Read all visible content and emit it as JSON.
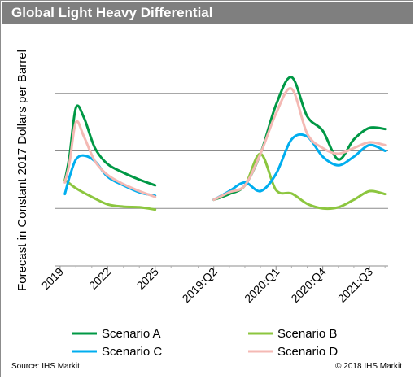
{
  "title": "Global Light Heavy Differential",
  "source": "Source: IHS Markit",
  "copyright": "© 2018 IHS Markit",
  "chart_data": {
    "type": "line",
    "title": "Global Light Heavy Differential",
    "ylabel": "Forecast in Constant 2017 Dollars per Barrel",
    "xlabel": "",
    "grid": true,
    "yticks_labeled": false,
    "ylim": [
      0,
      4
    ],
    "legend_position": "bottom",
    "panels": [
      {
        "name": "annual",
        "xlim": [
          2018.7,
          2026.4
        ],
        "x_ticks": [
          2019,
          2022,
          2025
        ],
        "x_tick_labels": [
          "2019",
          "2022",
          "2025"
        ],
        "series": [
          {
            "name": "Scenario A",
            "color": "#009845",
            "x": [
              2019.3,
              2019.6,
              2020.0,
              2020.5,
              2021.2,
              2022.0,
              2023.0,
              2024.0,
              2025.0
            ],
            "y": [
              1.48,
              1.92,
              2.75,
              2.58,
              2.05,
              1.77,
              1.62,
              1.5,
              1.4
            ]
          },
          {
            "name": "Scenario B",
            "color": "#8cc63f",
            "x": [
              2019.3,
              2020.0,
              2021.0,
              2022.0,
              2023.0,
              2024.0,
              2025.0
            ],
            "y": [
              1.5,
              1.35,
              1.2,
              1.07,
              1.03,
              1.02,
              0.98
            ]
          },
          {
            "name": "Scenario C",
            "color": "#00aeef",
            "x": [
              2019.3,
              2019.6,
              2020.0,
              2020.5,
              2021.2,
              2022.0,
              2023.0,
              2024.0,
              2025.0
            ],
            "y": [
              1.25,
              1.55,
              1.85,
              1.92,
              1.82,
              1.55,
              1.4,
              1.28,
              1.22
            ]
          },
          {
            "name": "Scenario D",
            "color": "#f4b9b4",
            "x": [
              2019.3,
              2019.6,
              2020.0,
              2020.5,
              2021.2,
              2022.0,
              2023.0,
              2024.0,
              2025.0
            ],
            "y": [
              1.45,
              1.8,
              2.5,
              2.25,
              1.82,
              1.58,
              1.42,
              1.3,
              1.2
            ]
          }
        ]
      },
      {
        "name": "quarterly",
        "xlim": [
          -1.5,
          11.2
        ],
        "x_ticks": [
          0,
          4,
          7,
          10
        ],
        "x_tick_labels": [
          "2019:Q2",
          "2020:Q1",
          "2020:Q4",
          "2021:Q3"
        ],
        "series": [
          {
            "name": "Scenario A",
            "color": "#009845",
            "x": [
              0,
              1,
              2,
              3,
              4,
              5,
              6,
              7,
              8,
              9,
              10,
              11
            ],
            "y": [
              1.15,
              1.25,
              1.4,
              1.95,
              2.8,
              3.28,
              2.6,
              2.35,
              1.85,
              2.2,
              2.4,
              2.38
            ]
          },
          {
            "name": "Scenario B",
            "color": "#8cc63f",
            "x": [
              0,
              1,
              2,
              3,
              4,
              5,
              6,
              7,
              8,
              9,
              10,
              11
            ],
            "y": [
              1.15,
              1.28,
              1.4,
              1.95,
              1.32,
              1.26,
              1.08,
              1.0,
              1.02,
              1.15,
              1.3,
              1.25
            ]
          },
          {
            "name": "Scenario C",
            "color": "#00aeef",
            "x": [
              0,
              1,
              2,
              3,
              4,
              5,
              6,
              7,
              8,
              9,
              10,
              11
            ],
            "y": [
              1.15,
              1.3,
              1.45,
              1.3,
              1.6,
              2.2,
              2.25,
              1.9,
              1.75,
              1.9,
              2.1,
              2.0
            ]
          },
          {
            "name": "Scenario D",
            "color": "#f4b9b4",
            "x": [
              0,
              1,
              2,
              3,
              4,
              5,
              6,
              7,
              8,
              9,
              10,
              11
            ],
            "y": [
              1.15,
              1.28,
              1.4,
              1.95,
              2.65,
              3.08,
              2.3,
              2.05,
              1.95,
              2.05,
              2.15,
              2.1
            ]
          }
        ]
      }
    ],
    "legend": [
      {
        "label": "Scenario A",
        "color": "#009845"
      },
      {
        "label": "Scenario B",
        "color": "#8cc63f"
      },
      {
        "label": "Scenario C",
        "color": "#00aeef"
      },
      {
        "label": "Scenario D",
        "color": "#f4b9b4"
      }
    ]
  }
}
